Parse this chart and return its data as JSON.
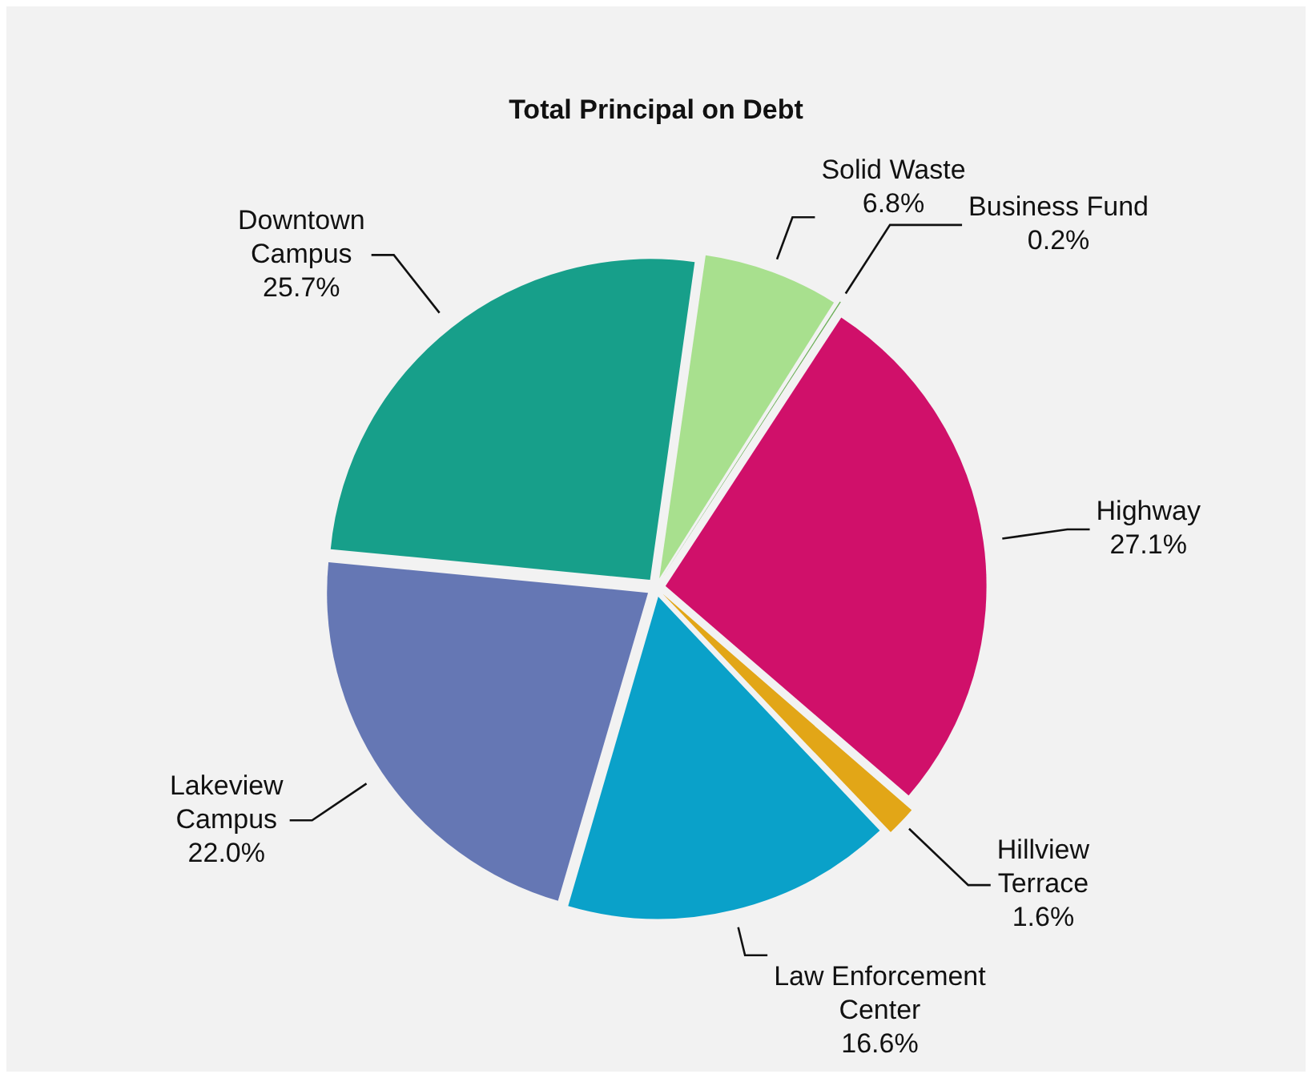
{
  "chart_data": {
    "type": "pie",
    "title": "Total Principal on Debt",
    "categories": [
      "Solid Waste",
      "Business Fund",
      "Highway",
      "Hillview Terrace",
      "Law Enforcement Center",
      "Lakeview Campus",
      "Downtown Campus"
    ],
    "values": [
      6.8,
      0.2,
      27.1,
      1.6,
      16.6,
      22.0,
      25.7
    ],
    "colors": [
      "#a8e08e",
      "#6aae55",
      "#d0106a",
      "#e2a617",
      "#0aa1c9",
      "#6577b4",
      "#179f8a"
    ],
    "value_labels": [
      "6.8%",
      "0.2%",
      "27.1%",
      "1.6%",
      "16.6%",
      "22.0%",
      "25.7%"
    ],
    "legend": false
  }
}
